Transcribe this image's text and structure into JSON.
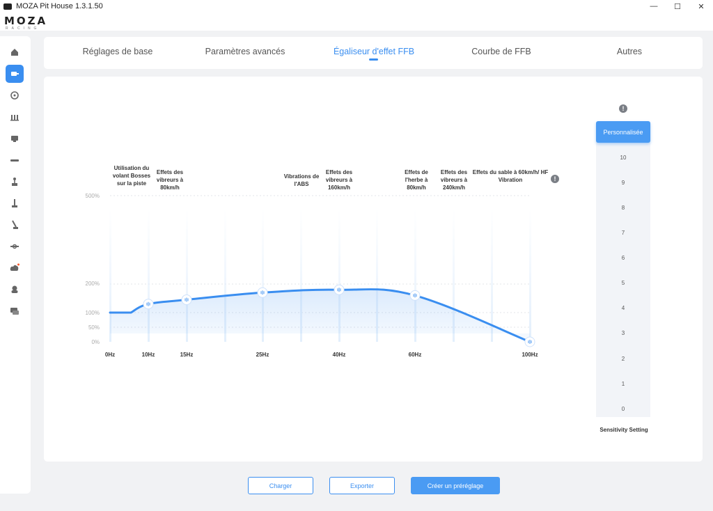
{
  "window": {
    "title": "MOZA Pit House 1.3.1.50"
  },
  "brand": {
    "logo": "MOZA",
    "tagline": "RACING"
  },
  "window_controls": {
    "minimize": "—",
    "maximize": "☐",
    "close": "✕"
  },
  "tabs": [
    {
      "label": "Réglages de base"
    },
    {
      "label": "Paramètres avancés"
    },
    {
      "label": "Égaliseur d'effet FFB"
    },
    {
      "label": "Courbe de FFB"
    },
    {
      "label": "Autres"
    }
  ],
  "active_tab": "Égaliseur d'effet FFB",
  "sidebar_icons": [
    "home-icon",
    "wheelbase-icon",
    "steering-wheel-icon",
    "pedals-icon",
    "dashboard-icon",
    "led-bar-icon",
    "shifter-icon",
    "handbrake-icon",
    "handbrake-lever-icon",
    "hub-icon",
    "cloud-update-icon",
    "user-icon",
    "support-chat-icon"
  ],
  "effect_labels": [
    {
      "text": "Utilisation du volant Bosses sur la piste"
    },
    {
      "text": "Effets des vibreurs à 80km/h"
    },
    {
      "text": "Vibrations de l'ABS"
    },
    {
      "text": "Effets des vibreurs à 160km/h"
    },
    {
      "text": "Effets de l'herbe à 80km/h"
    },
    {
      "text": "Effets des vibreurs à 240km/h"
    },
    {
      "text": "Effets du sable à 60km/h/ HF Vibration"
    }
  ],
  "info_glyph": "!",
  "chart_data": {
    "type": "line",
    "x": [
      "0Hz",
      "10Hz",
      "15Hz",
      "25Hz",
      "40Hz",
      "60Hz",
      "100Hz"
    ],
    "x_hz": [
      0,
      10,
      15,
      25,
      40,
      60,
      100
    ],
    "y_ticks": [
      "500%",
      "200%",
      "100%",
      "50%",
      "0%"
    ],
    "handles": [
      {
        "x_hz": 10,
        "y_pct": 130
      },
      {
        "x_hz": 15,
        "y_pct": 145
      },
      {
        "x_hz": 25,
        "y_pct": 170
      },
      {
        "x_hz": 40,
        "y_pct": 180
      },
      {
        "x_hz": 60,
        "y_pct": 160
      },
      {
        "x_hz": 100,
        "y_pct": 0
      }
    ],
    "start": {
      "x_hz": 0,
      "y_pct": 100
    },
    "line_color": "#3a8ef0"
  },
  "sensitivity": {
    "button": "Personnalisée",
    "levels": [
      "10",
      "9",
      "8",
      "7",
      "6",
      "5",
      "4",
      "3",
      "2",
      "1",
      "0"
    ],
    "label": "Sensitivity Setting"
  },
  "buttons": {
    "load": "Charger",
    "export": "Exporter",
    "create": "Créer un préréglage"
  }
}
